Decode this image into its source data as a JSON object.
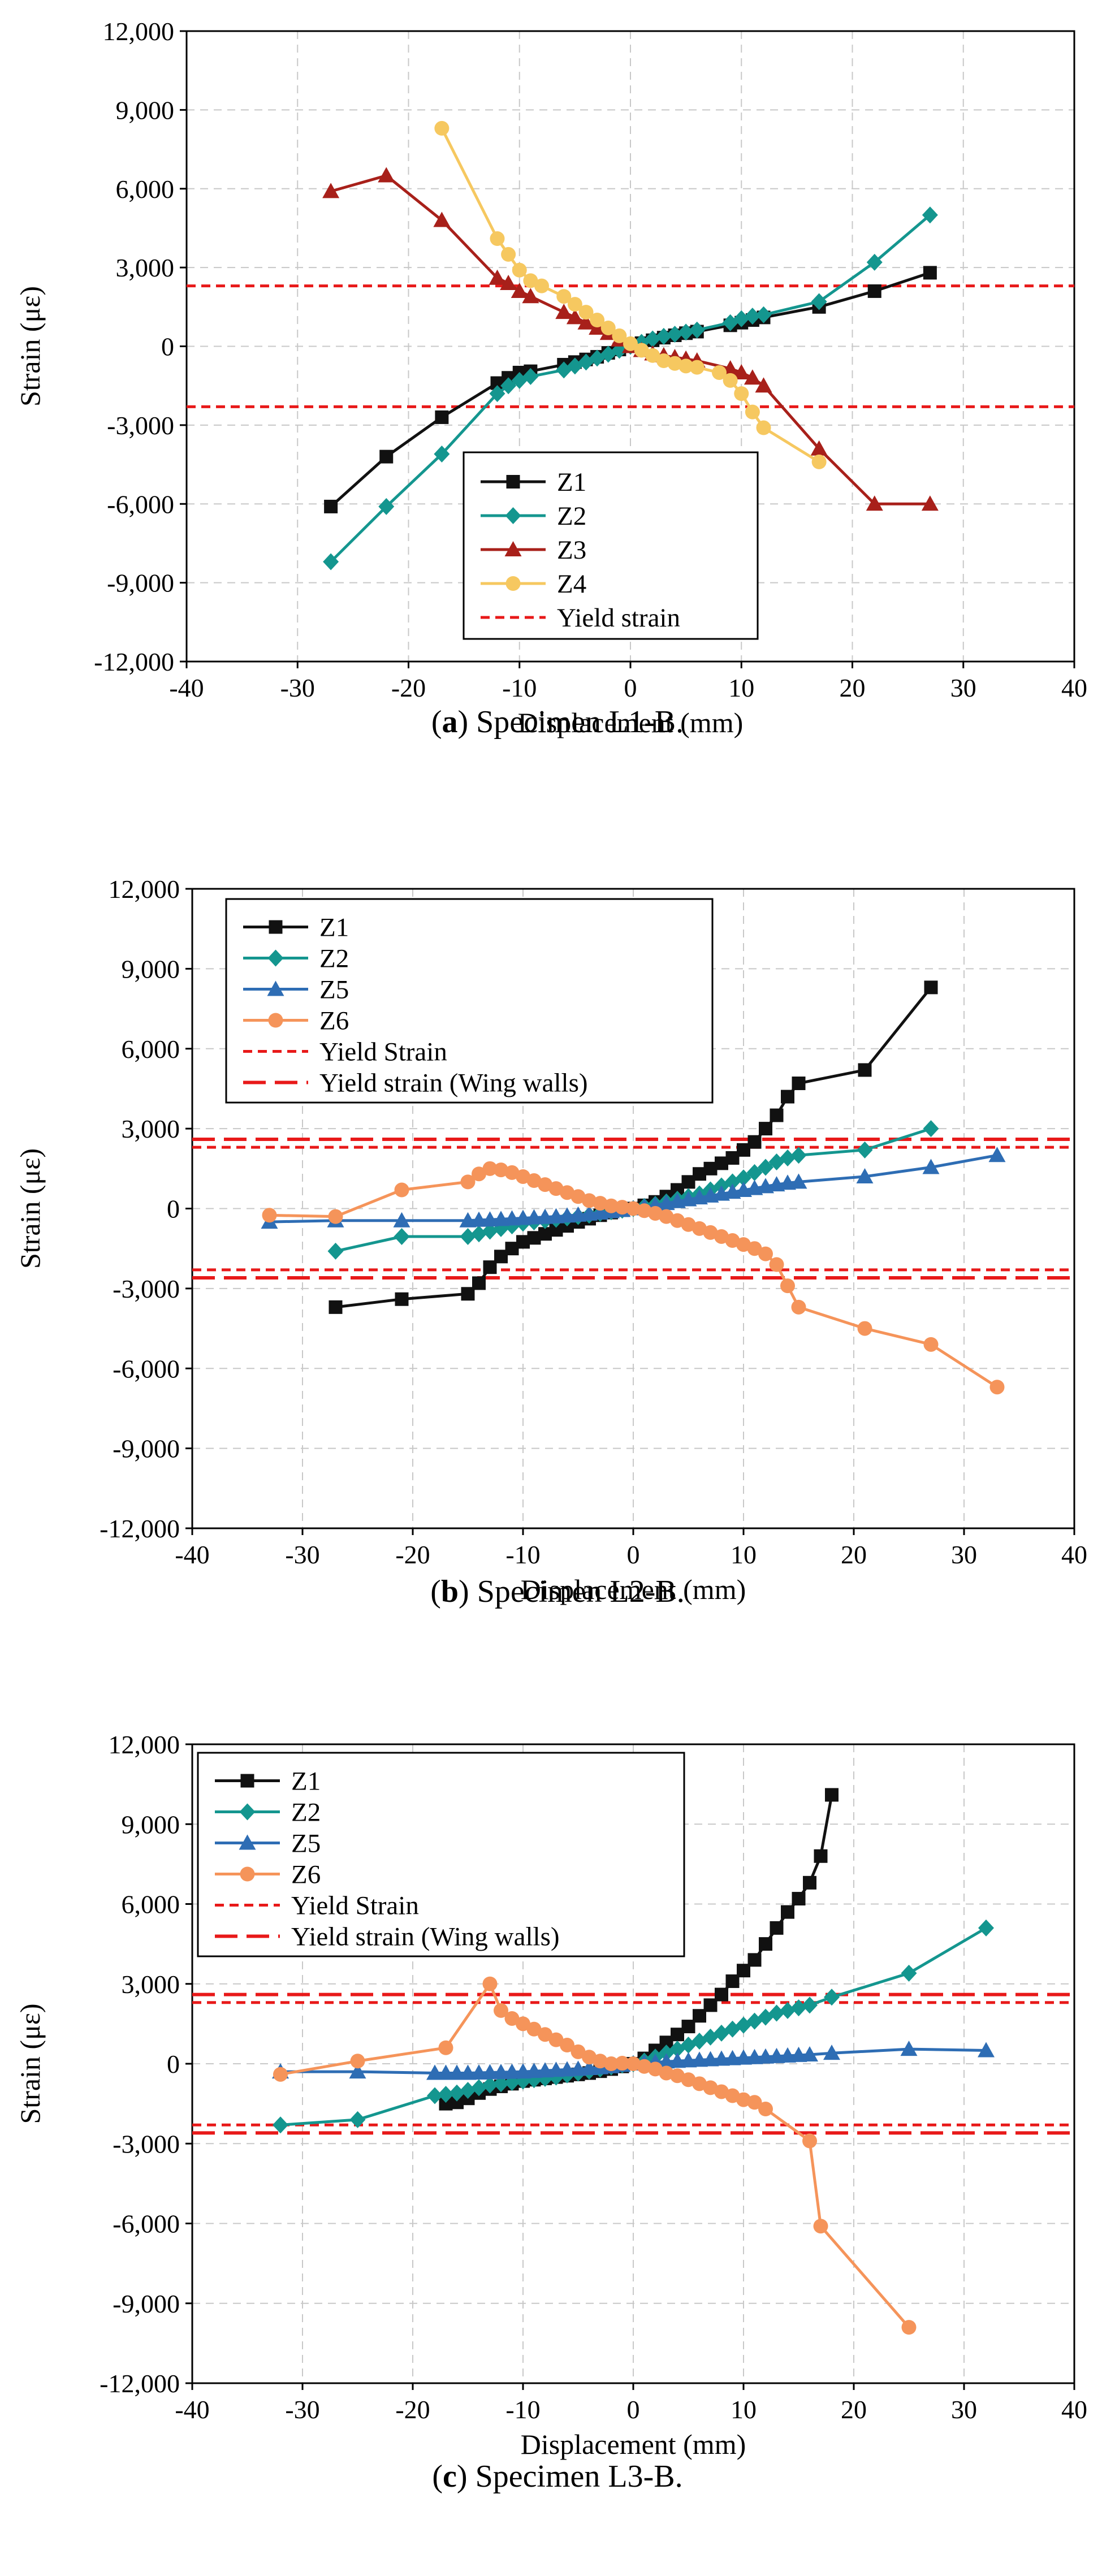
{
  "colors": {
    "Z1": "#111111",
    "Z2": "#14968f",
    "Z3": "#a8201a",
    "Z4": "#f6c860",
    "Z5": "#2e6db4",
    "Z6": "#f5945a",
    "yield": "#e81919",
    "grid": "#c8c8c8"
  },
  "chart_data": [
    {
      "type": "line",
      "caption_letter": "a",
      "caption_text": " Specimen L1-B.",
      "caption_open": "(",
      "caption_close": ")",
      "xlabel": "Displacement (mm)",
      "ylabel": "Strain (με)",
      "xlim": [
        -40,
        40
      ],
      "ylim": [
        -12000,
        12000
      ],
      "xticks": [
        -40,
        -30,
        -20,
        -10,
        0,
        10,
        20,
        30,
        40
      ],
      "yticks": [
        -12000,
        -9000,
        -6000,
        -3000,
        0,
        3000,
        6000,
        9000,
        12000
      ],
      "ytick_labels": [
        "-12,000",
        "-9,000",
        "-6,000",
        "-3,000",
        "0",
        "3,000",
        "6,000",
        "9,000",
        "12,000"
      ],
      "grid": true,
      "legend_position": "lower-center",
      "series": [
        {
          "name": "Z1",
          "marker": "square",
          "color_key": "Z1",
          "x": [
            -27,
            -22,
            -17,
            -12,
            -11,
            -10,
            -9,
            -6,
            -5,
            -4,
            -3,
            -2,
            -1,
            0,
            1,
            2,
            3,
            4,
            5,
            6,
            9,
            10,
            11,
            12,
            17,
            22,
            27
          ],
          "y": [
            -6100,
            -4200,
            -2700,
            -1400,
            -1200,
            -1000,
            -950,
            -700,
            -600,
            -500,
            -400,
            -250,
            -120,
            0,
            120,
            230,
            330,
            420,
            500,
            560,
            800,
            900,
            1000,
            1100,
            1500,
            2100,
            2800
          ]
        },
        {
          "name": "Z2",
          "marker": "diamond",
          "color_key": "Z2",
          "x": [
            -27,
            -22,
            -17,
            -12,
            -11,
            -10,
            -9,
            -6,
            -5,
            -4,
            -3,
            -2,
            -1,
            0,
            1,
            2,
            3,
            4,
            5,
            6,
            9,
            10,
            11,
            12,
            17,
            22,
            27
          ],
          "y": [
            -8200,
            -6100,
            -4100,
            -1800,
            -1500,
            -1300,
            -1150,
            -900,
            -750,
            -600,
            -450,
            -300,
            -150,
            0,
            150,
            280,
            380,
            460,
            540,
            620,
            900,
            1050,
            1150,
            1200,
            1700,
            3200,
            5000
          ]
        },
        {
          "name": "Z3",
          "marker": "triangle",
          "color_key": "Z3",
          "x": [
            -27,
            -22,
            -17,
            -12,
            -11,
            -10,
            -9,
            -6,
            -5,
            -4,
            -3,
            -2,
            -1,
            0,
            1,
            2,
            3,
            4,
            5,
            6,
            9,
            10,
            11,
            12,
            17,
            22,
            27
          ],
          "y": [
            5900,
            6500,
            4800,
            2600,
            2400,
            2100,
            1900,
            1300,
            1100,
            900,
            700,
            500,
            250,
            0,
            -150,
            -280,
            -350,
            -420,
            -480,
            -550,
            -850,
            -1000,
            -1200,
            -1500,
            -3900,
            -6000,
            -6000
          ]
        },
        {
          "name": "Z4",
          "marker": "circle",
          "color_key": "Z4",
          "x": [
            -17,
            -12,
            -11,
            -10,
            -9,
            -8,
            -6,
            -5,
            -4,
            -3,
            -2,
            -1,
            0,
            1,
            2,
            3,
            4,
            5,
            6,
            8,
            9,
            10,
            11,
            12,
            17
          ],
          "y": [
            8300,
            4100,
            3500,
            2900,
            2500,
            2300,
            1900,
            1600,
            1300,
            1000,
            700,
            400,
            100,
            -150,
            -350,
            -550,
            -650,
            -750,
            -800,
            -1000,
            -1300,
            -1800,
            -2500,
            -3100,
            -4400
          ]
        },
        {
          "name": "Yield strain",
          "style": "short-dash",
          "color_key": "yield",
          "y_lines": [
            2300,
            -2300
          ]
        }
      ]
    },
    {
      "type": "line",
      "caption_letter": "b",
      "caption_text": " Specimen L2-B.",
      "caption_open": "(",
      "caption_close": ")",
      "xlabel": "Displacement (mm)",
      "ylabel": "Strain (με)",
      "xlim": [
        -40,
        40
      ],
      "ylim": [
        -12000,
        12000
      ],
      "xticks": [
        -40,
        -30,
        -20,
        -10,
        0,
        10,
        20,
        30,
        40
      ],
      "yticks": [
        -12000,
        -9000,
        -6000,
        -3000,
        0,
        3000,
        6000,
        9000,
        12000
      ],
      "ytick_labels": [
        "-12,000",
        "-9,000",
        "-6,000",
        "-3,000",
        "0",
        "3,000",
        "6,000",
        "9,000",
        "12,000"
      ],
      "grid": true,
      "legend_position": "top-left",
      "series": [
        {
          "name": "Z1",
          "marker": "square",
          "color_key": "Z1",
          "x": [
            -27,
            -21,
            -15,
            -14,
            -13,
            -12,
            -11,
            -10,
            -9,
            -8,
            -7,
            -6,
            -5,
            -4,
            -3,
            -2,
            -1,
            0,
            1,
            2,
            3,
            4,
            5,
            6,
            7,
            8,
            9,
            10,
            11,
            12,
            13,
            14,
            15,
            21,
            27
          ],
          "y": [
            -3700,
            -3400,
            -3200,
            -2800,
            -2200,
            -1800,
            -1500,
            -1250,
            -1100,
            -950,
            -800,
            -650,
            -500,
            -380,
            -250,
            -150,
            -60,
            0,
            120,
            250,
            450,
            700,
            1000,
            1300,
            1500,
            1700,
            1900,
            2200,
            2500,
            3000,
            3500,
            4200,
            4700,
            5200,
            8300
          ]
        },
        {
          "name": "Z2",
          "marker": "diamond",
          "color_key": "Z2",
          "x": [
            -27,
            -21,
            -15,
            -14,
            -13,
            -12,
            -11,
            -10,
            -9,
            -8,
            -7,
            -6,
            -5,
            -4,
            -3,
            -2,
            -1,
            0,
            1,
            2,
            3,
            4,
            5,
            6,
            7,
            8,
            9,
            10,
            11,
            12,
            13,
            14,
            15,
            21,
            27
          ],
          "y": [
            -1600,
            -1050,
            -1050,
            -950,
            -850,
            -750,
            -650,
            -550,
            -500,
            -450,
            -400,
            -350,
            -300,
            -250,
            -180,
            -120,
            -60,
            0,
            80,
            160,
            250,
            350,
            450,
            550,
            700,
            850,
            1000,
            1150,
            1350,
            1550,
            1750,
            1900,
            2000,
            2200,
            3000
          ]
        },
        {
          "name": "Z5",
          "marker": "triangle",
          "color_key": "Z5",
          "x": [
            -33,
            -27,
            -21,
            -15,
            -14,
            -13,
            -12,
            -11,
            -10,
            -9,
            -8,
            -7,
            -6,
            -5,
            -4,
            -3,
            -2,
            -1,
            0,
            1,
            2,
            3,
            4,
            5,
            6,
            7,
            8,
            9,
            10,
            11,
            12,
            13,
            14,
            15,
            21,
            27,
            33
          ],
          "y": [
            -500,
            -450,
            -450,
            -450,
            -430,
            -420,
            -400,
            -380,
            -360,
            -340,
            -320,
            -300,
            -270,
            -240,
            -200,
            -160,
            -110,
            -60,
            0,
            60,
            130,
            200,
            270,
            340,
            410,
            480,
            550,
            620,
            690,
            760,
            830,
            900,
            960,
            1000,
            1200,
            1550,
            2000
          ]
        },
        {
          "name": "Z6",
          "marker": "circle",
          "color_key": "Z6",
          "x": [
            -33,
            -27,
            -21,
            -15,
            -14,
            -13,
            -12,
            -11,
            -10,
            -9,
            -8,
            -7,
            -6,
            -5,
            -4,
            -3,
            -2,
            -1,
            0,
            1,
            2,
            3,
            4,
            5,
            6,
            7,
            8,
            9,
            10,
            11,
            12,
            13,
            14,
            15,
            21,
            27,
            33
          ],
          "y": [
            -250,
            -300,
            700,
            1000,
            1300,
            1500,
            1450,
            1350,
            1200,
            1050,
            900,
            750,
            600,
            450,
            300,
            200,
            100,
            50,
            0,
            -80,
            -180,
            -300,
            -450,
            -600,
            -750,
            -900,
            -1050,
            -1200,
            -1350,
            -1500,
            -1700,
            -2100,
            -2900,
            -3700,
            -4500,
            -5100,
            -6700
          ]
        },
        {
          "name": "Yield Strain",
          "style": "short-dash",
          "color_key": "yield",
          "y_lines": [
            2300,
            -2300
          ]
        },
        {
          "name": "Yield strain (Wing walls)",
          "style": "long-dash",
          "color_key": "yield",
          "y_lines": [
            2600,
            -2600
          ]
        }
      ]
    },
    {
      "type": "line",
      "caption_letter": "c",
      "caption_text": " Specimen L3-B.",
      "caption_open": "(",
      "caption_close": ")",
      "xlabel": "Displacement (mm)",
      "ylabel": "Strain (με)",
      "xlim": [
        -40,
        40
      ],
      "ylim": [
        -12000,
        12000
      ],
      "xticks": [
        -40,
        -30,
        -20,
        -10,
        0,
        10,
        20,
        30,
        40
      ],
      "yticks": [
        -12000,
        -9000,
        -6000,
        -3000,
        0,
        3000,
        6000,
        9000,
        12000
      ],
      "ytick_labels": [
        "-12,000",
        "-9,000",
        "-6,000",
        "-3,000",
        "0",
        "3,000",
        "6,000",
        "9,000",
        "12,000"
      ],
      "grid": true,
      "legend_position": "top-left",
      "series": [
        {
          "name": "Z1",
          "marker": "square",
          "color_key": "Z1",
          "x": [
            -17,
            -16,
            -15,
            -14,
            -13,
            -12,
            -11,
            -10,
            -9,
            -8,
            -7,
            -6,
            -5,
            -4,
            -3,
            -2,
            -1,
            0,
            1,
            2,
            3,
            4,
            5,
            6,
            7,
            8,
            9,
            10,
            11,
            12,
            13,
            14,
            15,
            16,
            17,
            18
          ],
          "y": [
            -1500,
            -1450,
            -1300,
            -1100,
            -950,
            -850,
            -750,
            -650,
            -600,
            -550,
            -500,
            -450,
            -400,
            -350,
            -280,
            -200,
            -100,
            0,
            200,
            500,
            800,
            1100,
            1400,
            1800,
            2200,
            2600,
            3100,
            3500,
            3900,
            4500,
            5100,
            5700,
            6200,
            6800,
            7800,
            10100
          ]
        },
        {
          "name": "Z2",
          "marker": "diamond",
          "color_key": "Z2",
          "x": [
            -32,
            -25,
            -18,
            -17,
            -16,
            -15,
            -14,
            -13,
            -12,
            -11,
            -10,
            -9,
            -8,
            -7,
            -6,
            -5,
            -4,
            -3,
            -2,
            -1,
            0,
            1,
            2,
            3,
            4,
            5,
            6,
            7,
            8,
            9,
            10,
            11,
            12,
            13,
            14,
            15,
            16,
            18,
            25,
            32
          ],
          "y": [
            -2300,
            -2100,
            -1200,
            -1150,
            -1100,
            -1000,
            -900,
            -800,
            -750,
            -700,
            -650,
            -600,
            -550,
            -500,
            -420,
            -350,
            -280,
            -200,
            -120,
            -50,
            0,
            100,
            250,
            400,
            550,
            700,
            850,
            1000,
            1150,
            1300,
            1450,
            1600,
            1750,
            1900,
            2000,
            2100,
            2200,
            2500,
            3400,
            5100
          ]
        },
        {
          "name": "Z5",
          "marker": "triangle",
          "color_key": "Z5",
          "x": [
            -32,
            -25,
            -18,
            -17,
            -16,
            -15,
            -14,
            -13,
            -12,
            -11,
            -10,
            -9,
            -8,
            -7,
            -6,
            -5,
            -4,
            -3,
            -2,
            -1,
            0,
            1,
            2,
            3,
            4,
            5,
            6,
            7,
            8,
            9,
            10,
            11,
            12,
            13,
            14,
            15,
            16,
            18,
            25,
            32
          ],
          "y": [
            -300,
            -300,
            -350,
            -350,
            -350,
            -350,
            -340,
            -330,
            -320,
            -310,
            -300,
            -280,
            -260,
            -240,
            -220,
            -200,
            -170,
            -140,
            -100,
            -50,
            0,
            30,
            60,
            80,
            100,
            120,
            140,
            160,
            180,
            200,
            220,
            240,
            260,
            280,
            300,
            320,
            340,
            400,
            550,
            500
          ]
        },
        {
          "name": "Z6",
          "marker": "circle",
          "color_key": "Z6",
          "x": [
            -32,
            -25,
            -17,
            -13,
            -12,
            -11,
            -10,
            -9,
            -8,
            -7,
            -6,
            -5,
            -4,
            -3,
            -2,
            -1,
            0,
            1,
            2,
            3,
            4,
            5,
            6,
            7,
            8,
            9,
            10,
            11,
            12,
            16,
            17,
            25
          ],
          "y": [
            -400,
            100,
            600,
            3000,
            2000,
            1700,
            1500,
            1300,
            1100,
            900,
            700,
            450,
            250,
            100,
            0,
            20,
            0,
            -100,
            -200,
            -350,
            -450,
            -600,
            -750,
            -900,
            -1050,
            -1200,
            -1350,
            -1450,
            -1700,
            -2900,
            -6100,
            -9900
          ]
        },
        {
          "name": "Yield Strain",
          "style": "short-dash",
          "color_key": "yield",
          "y_lines": [
            2300,
            -2300
          ]
        },
        {
          "name": "Yield strain (Wing walls)",
          "style": "long-dash",
          "color_key": "yield",
          "y_lines": [
            2600,
            -2600
          ]
        }
      ]
    }
  ]
}
